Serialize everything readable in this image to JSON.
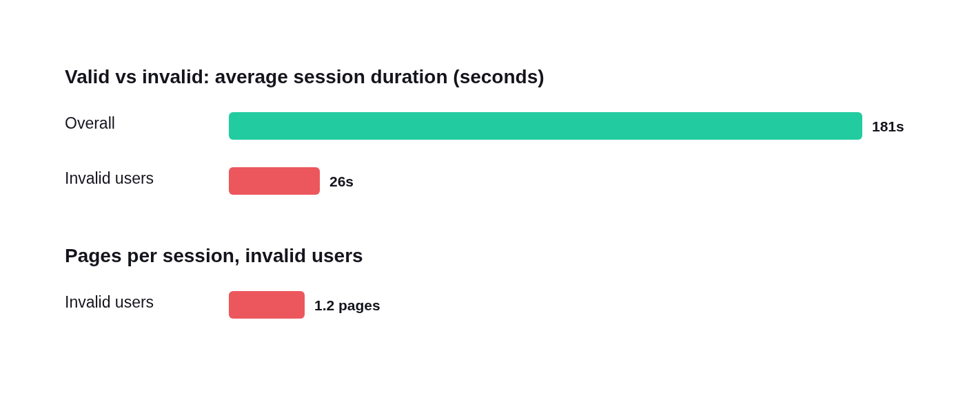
{
  "chart_data": [
    {
      "type": "bar",
      "orientation": "horizontal",
      "title": "Valid vs invalid: average session duration (seconds)",
      "categories": [
        "Overall",
        "Invalid users"
      ],
      "values": [
        181,
        26
      ],
      "colors": [
        "#22cca0",
        "#ec575d"
      ],
      "value_labels": [
        "181s",
        "26s"
      ]
    },
    {
      "type": "bar",
      "orientation": "horizontal",
      "title": "Pages per session, invalid users",
      "categories": [
        "Invalid users"
      ],
      "values": [
        1.2
      ],
      "colors": [
        "#ec575d"
      ],
      "value_labels": [
        "1.2 pages"
      ]
    }
  ]
}
